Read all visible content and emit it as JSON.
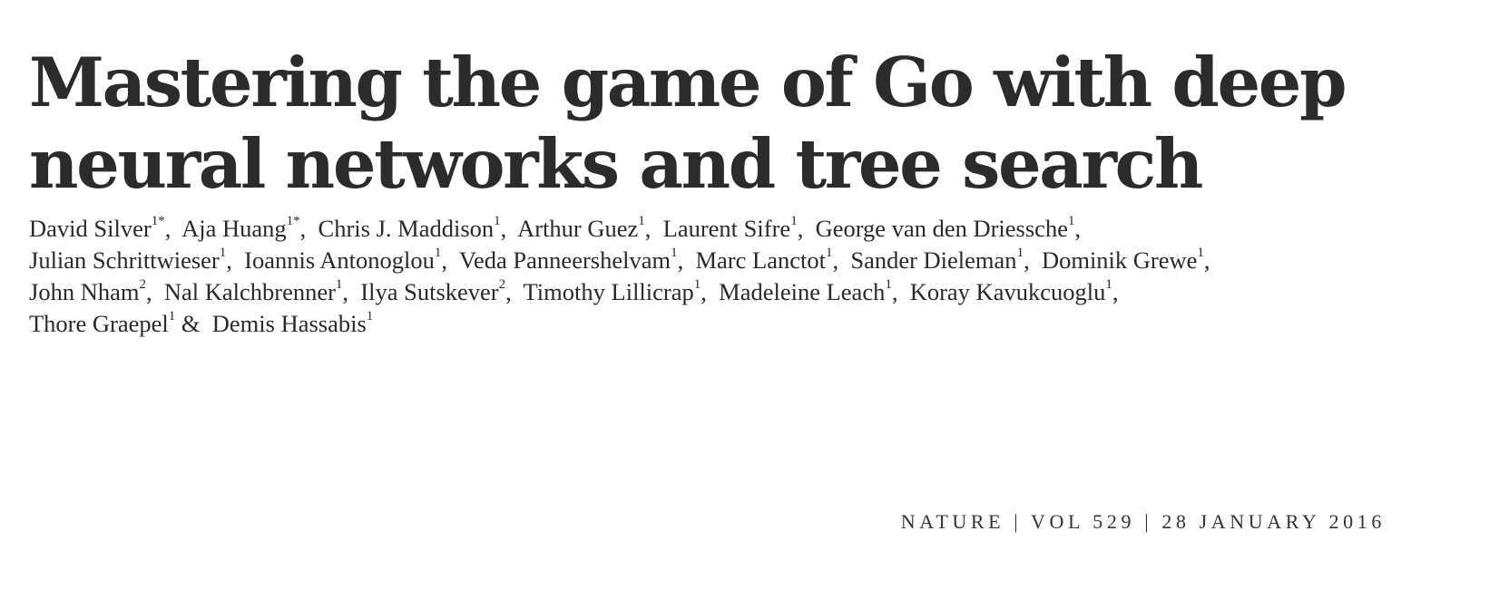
{
  "title_lines": [
    "Mastering the game of Go with deep",
    "neural networks and tree search"
  ],
  "authors": [
    {
      "name": "David Silver",
      "mark": "1*"
    },
    {
      "name": "Aja Huang",
      "mark": "1*"
    },
    {
      "name": "Chris J. Maddison",
      "mark": "1"
    },
    {
      "name": "Arthur Guez",
      "mark": "1"
    },
    {
      "name": "Laurent Sifre",
      "mark": "1"
    },
    {
      "name": "George van den Driessche",
      "mark": "1"
    },
    {
      "name": "Julian Schrittwieser",
      "mark": "1"
    },
    {
      "name": "Ioannis Antonoglou",
      "mark": "1"
    },
    {
      "name": "Veda Panneershelvam",
      "mark": "1"
    },
    {
      "name": "Marc Lanctot",
      "mark": "1"
    },
    {
      "name": "Sander Dieleman",
      "mark": "1"
    },
    {
      "name": "Dominik Grewe",
      "mark": "1"
    },
    {
      "name": "John Nham",
      "mark": "2"
    },
    {
      "name": "Nal Kalchbrenner",
      "mark": "1"
    },
    {
      "name": "Ilya Sutskever",
      "mark": "2"
    },
    {
      "name": "Timothy Lillicrap",
      "mark": "1"
    },
    {
      "name": "Madeleine Leach",
      "mark": "1"
    },
    {
      "name": "Koray Kavukcuoglu",
      "mark": "1"
    },
    {
      "name": "Thore Graepel",
      "mark": "1"
    },
    {
      "name": "Demis Hassabis",
      "mark": "1"
    }
  ],
  "author_separators": {
    "comma": ", ",
    "ampersand": " & "
  },
  "journal": {
    "name": "NATURE",
    "divider": "|",
    "volume": "VOL 529",
    "date": "28 JANUARY 2016"
  }
}
